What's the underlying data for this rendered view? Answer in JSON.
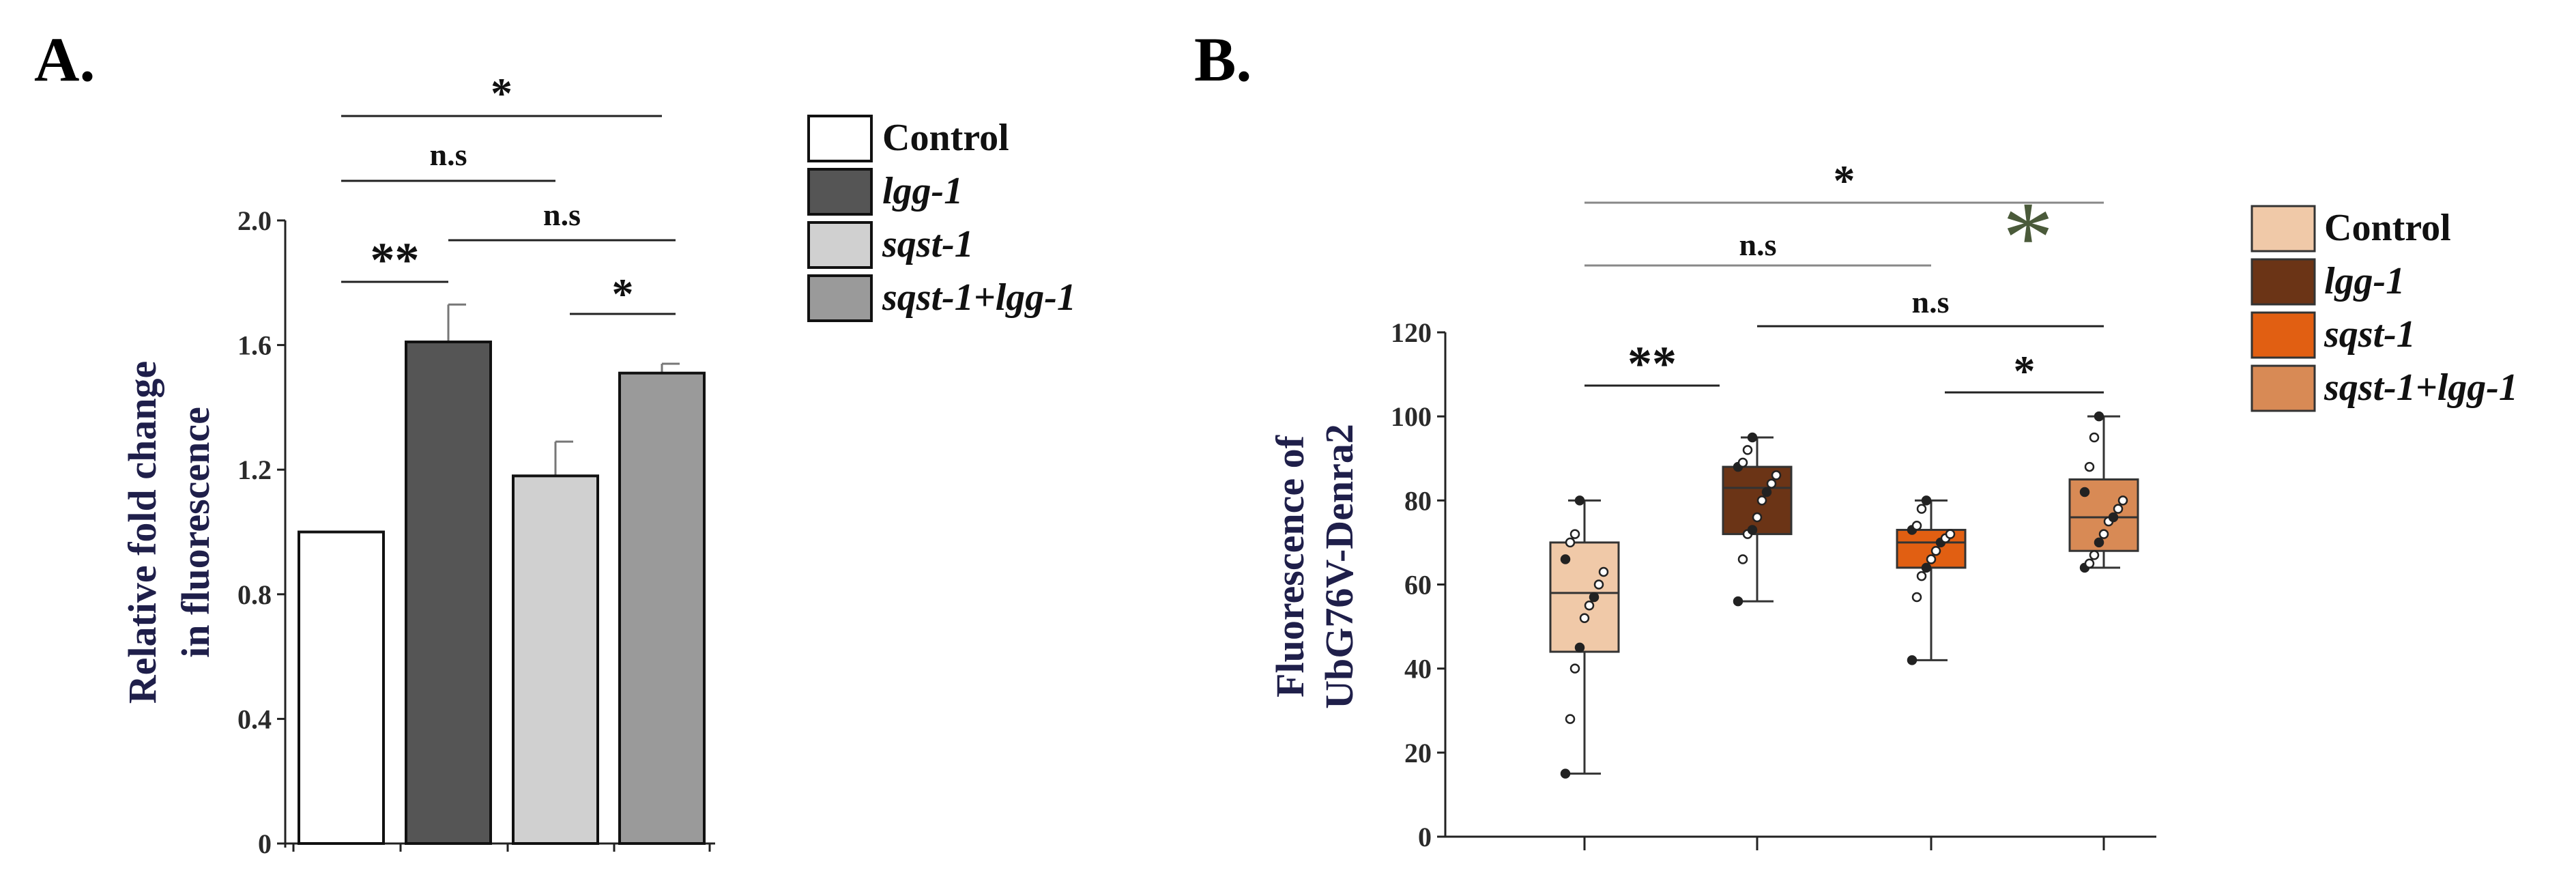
{
  "panels": [
    {
      "id": "A",
      "label": "A."
    },
    {
      "id": "B",
      "label": "B."
    }
  ],
  "colors": {
    "A_control": "#ffffff",
    "A_lgg1": "#555555",
    "A_sqst1": "#d0d0d0",
    "A_both": "#9a9a9a",
    "B_control": "#f0c9a8",
    "B_lgg1": "#6b3416",
    "B_sqst1": "#e15f12",
    "B_both": "#d88a55",
    "green_asterisk": "#4a5a3a"
  },
  "chart_data": [
    {
      "type": "bar",
      "panel": "A",
      "title": "",
      "xlabel": "",
      "ylabel": "Relative fold change in fluorescence",
      "ylabel_lines": [
        "Relative fold change",
        "in fluorescence"
      ],
      "ylim": [
        0,
        2.0
      ],
      "yticks": [
        "0",
        "0.4",
        "0.8",
        "1.2",
        "1.6",
        "2.0"
      ],
      "categories": [
        "Control",
        "lgg-1",
        "sqst-1",
        "sqst-1+lgg-1"
      ],
      "values": [
        1.0,
        1.61,
        1.18,
        1.51
      ],
      "errors": [
        0.0,
        0.12,
        0.11,
        0.03
      ],
      "legend": [
        "Control",
        "lgg-1",
        "sqst-1",
        "sqst-1+lgg-1"
      ],
      "legend_italic": [
        false,
        true,
        true,
        true
      ],
      "significance": [
        {
          "from": 0,
          "to": 3,
          "label": "*"
        },
        {
          "from": 0,
          "to": 2,
          "label": "n.s"
        },
        {
          "from": 1,
          "to": 3,
          "label": "n.s"
        },
        {
          "from": 0,
          "to": 1,
          "label": "**"
        },
        {
          "from": 2,
          "to": 3,
          "label": "*"
        }
      ]
    },
    {
      "type": "box",
      "panel": "B",
      "title": "",
      "xlabel": "",
      "ylabel": "Fluorescence of UbG76V-Denra2",
      "ylabel_lines": [
        "Fluorescence of",
        "UbG76V-Denra2"
      ],
      "ylim": [
        0,
        120
      ],
      "yticks": [
        "0",
        "20",
        "40",
        "60",
        "80",
        "100",
        "120"
      ],
      "categories": [
        "Control",
        "lgg-1",
        "sqst-1",
        "sqst-1+lgg-1"
      ],
      "boxes": [
        {
          "min": 15,
          "q1": 44,
          "median": 58,
          "q3": 70,
          "max": 80,
          "points": [
            15,
            28,
            40,
            45,
            52,
            55,
            57,
            60,
            63,
            66,
            70,
            72,
            80
          ]
        },
        {
          "min": 56,
          "q1": 72,
          "median": 83,
          "q3": 88,
          "max": 95,
          "points": [
            56,
            66,
            72,
            73,
            76,
            80,
            82,
            84,
            86,
            88,
            89,
            92,
            95
          ]
        },
        {
          "min": 42,
          "q1": 64,
          "median": 70,
          "q3": 73,
          "max": 80,
          "points": [
            42,
            57,
            62,
            64,
            66,
            68,
            70,
            71,
            72,
            73,
            74,
            78,
            80
          ]
        },
        {
          "min": 64,
          "q1": 68,
          "median": 76,
          "q3": 85,
          "max": 100,
          "points": [
            64,
            65,
            67,
            70,
            72,
            75,
            76,
            78,
            80,
            82,
            88,
            95,
            100
          ]
        }
      ],
      "legend": [
        "Control",
        "lgg-1",
        "sqst-1",
        "sqst-1+lgg-1"
      ],
      "legend_italic": [
        false,
        true,
        true,
        true
      ],
      "significance": [
        {
          "from": 0,
          "to": 3,
          "label": "*",
          "extra_label": "*"
        },
        {
          "from": 0,
          "to": 2,
          "label": "n.s"
        },
        {
          "from": 1,
          "to": 3,
          "label": "n.s"
        },
        {
          "from": 0,
          "to": 1,
          "label": "**"
        },
        {
          "from": 2,
          "to": 3,
          "label": "*"
        }
      ]
    }
  ]
}
